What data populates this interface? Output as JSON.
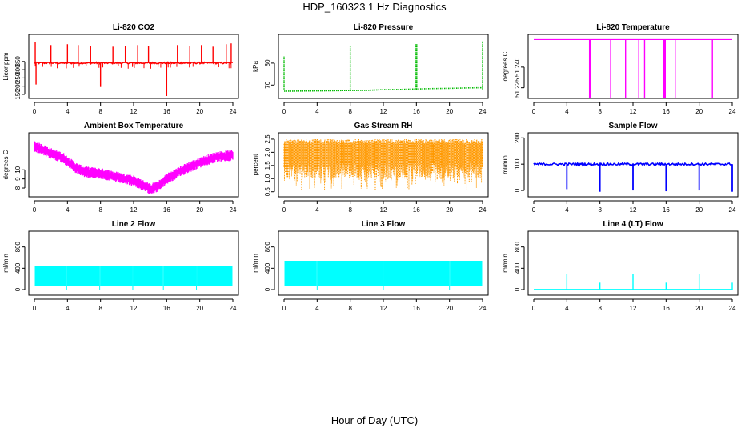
{
  "title": "HDP_160323  1 Hz Diagnostics",
  "xlabel": "Hour of Day (UTC)",
  "chart_data": [
    {
      "type": "line",
      "title": "Li-820 CO2",
      "ylabel": "Licor ppm",
      "color": "#ff0000",
      "xlim": [
        0,
        24
      ],
      "ylim": [
        140,
        500
      ],
      "xticks": [
        0,
        4,
        8,
        12,
        16,
        20,
        24
      ],
      "yticks": [
        150,
        200,
        250,
        300,
        350
      ],
      "baseline": 341,
      "spikes": [
        {
          "x": 0.1,
          "y": 470
        },
        {
          "x": 0.2,
          "y": 210
        },
        {
          "x": 2.0,
          "y": 450
        },
        {
          "x": 4.0,
          "y": 455
        },
        {
          "x": 5.3,
          "y": 450
        },
        {
          "x": 6.8,
          "y": 445
        },
        {
          "x": 8.0,
          "y": 195
        },
        {
          "x": 9.5,
          "y": 440
        },
        {
          "x": 11.0,
          "y": 445
        },
        {
          "x": 12.5,
          "y": 450
        },
        {
          "x": 13.8,
          "y": 445
        },
        {
          "x": 16.0,
          "y": 140
        },
        {
          "x": 17.3,
          "y": 450
        },
        {
          "x": 18.8,
          "y": 445
        },
        {
          "x": 20.2,
          "y": 450
        },
        {
          "x": 21.6,
          "y": 440
        },
        {
          "x": 23.2,
          "y": 455
        },
        {
          "x": 23.8,
          "y": 460
        }
      ]
    },
    {
      "type": "line",
      "title": "Li-820 Pressure",
      "ylabel": "kPa",
      "color": "#00bb00",
      "xlim": [
        0,
        24
      ],
      "ylim": [
        65,
        92
      ],
      "xticks": [
        0,
        4,
        8,
        12,
        16,
        20,
        24
      ],
      "yticks": [
        70,
        80
      ],
      "x": [
        0,
        0.2,
        3,
        6,
        8,
        10,
        12,
        14,
        16,
        18,
        20,
        22,
        24
      ],
      "y": [
        67.2,
        67.2,
        67.3,
        67.4,
        67.5,
        67.6,
        67.9,
        68.0,
        68.2,
        68.4,
        68.5,
        68.7,
        68.8
      ],
      "spikes": [
        {
          "x": 0.0,
          "y": 83
        },
        {
          "x": 8.0,
          "y": 88
        },
        {
          "x": 16.0,
          "y": 89
        },
        {
          "x": 24.0,
          "y": 90
        }
      ]
    },
    {
      "type": "line",
      "title": "Li-820 Temperature",
      "ylabel": "degrees C",
      "color": "#ff00ff",
      "xlim": [
        0,
        24
      ],
      "ylim": [
        51.219,
        51.262
      ],
      "xticks": [
        0,
        4,
        8,
        12,
        16,
        20,
        24
      ],
      "yticks": [
        51.225,
        51.24
      ],
      "yticklabels": [
        "51.225",
        "51.240"
      ],
      "baseline": 51.26,
      "drops": [
        6.8,
        6.9,
        9.3,
        11.1,
        12.7,
        13.4,
        15.8,
        15.9,
        17.1,
        21.6
      ]
    },
    {
      "type": "line",
      "title": "Ambient Box Temperature",
      "ylabel": "degrees C",
      "color": "#ff00ff",
      "xlim": [
        0,
        24
      ],
      "ylim": [
        7.3,
        13.8
      ],
      "xticks": [
        0,
        4,
        8,
        12,
        16,
        20,
        24
      ],
      "yticks": [
        8,
        9,
        10
      ],
      "x": [
        0,
        2,
        3.5,
        5,
        6,
        8,
        10,
        12,
        14,
        15,
        16,
        18,
        20,
        22,
        24
      ],
      "y": [
        12.6,
        11.8,
        11.3,
        10.2,
        9.8,
        9.6,
        9.2,
        8.8,
        7.9,
        8.2,
        9.0,
        10.0,
        10.8,
        11.4,
        11.6
      ]
    },
    {
      "type": "scatter",
      "title": "Gas Stream RH",
      "ylabel": "percent",
      "color": "#ff9900",
      "xlim": [
        0,
        24
      ],
      "ylim": [
        0.4,
        2.65
      ],
      "xticks": [
        0,
        4,
        8,
        12,
        16,
        20,
        24
      ],
      "yticks": [
        0.5,
        1.0,
        1.5,
        2.0,
        2.5
      ],
      "yticklabels": [
        "0.5",
        "1.0",
        "1.5",
        "2.0",
        "2.5"
      ],
      "upper": 2.4,
      "lower": 1.0,
      "min": 0.55
    },
    {
      "type": "line",
      "title": "Sample Flow",
      "ylabel": "ml/min",
      "color": "#0000ff",
      "xlim": [
        0,
        24
      ],
      "ylim": [
        -15,
        210
      ],
      "xticks": [
        0,
        4,
        8,
        12,
        16,
        20,
        24
      ],
      "yticks": [
        0,
        100,
        200
      ],
      "baseline": 100,
      "drops": [
        {
          "x": 4.0,
          "y": 5
        },
        {
          "x": 8.0,
          "y": -5
        },
        {
          "x": 12.0,
          "y": 0
        },
        {
          "x": 16.0,
          "y": -3
        },
        {
          "x": 20.0,
          "y": 0
        },
        {
          "x": 24.0,
          "y": -5
        }
      ]
    },
    {
      "type": "area",
      "title": "Line 2 Flow",
      "ylabel": "ml/min",
      "color": "#00ffff",
      "xlim": [
        0,
        24
      ],
      "ylim": [
        -60,
        1050
      ],
      "xticks": [
        0,
        4,
        8,
        12,
        16,
        20,
        24
      ],
      "yticks": [
        0,
        400,
        800
      ],
      "upper": 450,
      "lower": 70,
      "gaps": [
        3.9,
        7.9,
        11.9,
        15.6,
        19.6
      ]
    },
    {
      "type": "area",
      "title": "Line 3 Flow",
      "ylabel": "ml/min",
      "color": "#00ffff",
      "xlim": [
        0,
        24
      ],
      "ylim": [
        -60,
        1050
      ],
      "xticks": [
        0,
        4,
        8,
        12,
        16,
        20,
        24
      ],
      "yticks": [
        0,
        400,
        800
      ],
      "upper": 540,
      "lower": 60,
      "gaps": [
        4.0,
        12.0,
        20.0
      ]
    },
    {
      "type": "line",
      "title": "Line 4 (LT) Flow",
      "ylabel": "ml/min",
      "color": "#00ffff",
      "xlim": [
        0,
        24
      ],
      "ylim": [
        -60,
        1050
      ],
      "xticks": [
        0,
        4,
        8,
        12,
        16,
        20,
        24
      ],
      "yticks": [
        0,
        400,
        800
      ],
      "baseline": 0,
      "spikes": [
        {
          "x": 4.0,
          "y": 300
        },
        {
          "x": 8.0,
          "y": 130
        },
        {
          "x": 12.0,
          "y": 300
        },
        {
          "x": 16.0,
          "y": 130
        },
        {
          "x": 20.0,
          "y": 300
        },
        {
          "x": 24.0,
          "y": 130
        }
      ]
    }
  ]
}
